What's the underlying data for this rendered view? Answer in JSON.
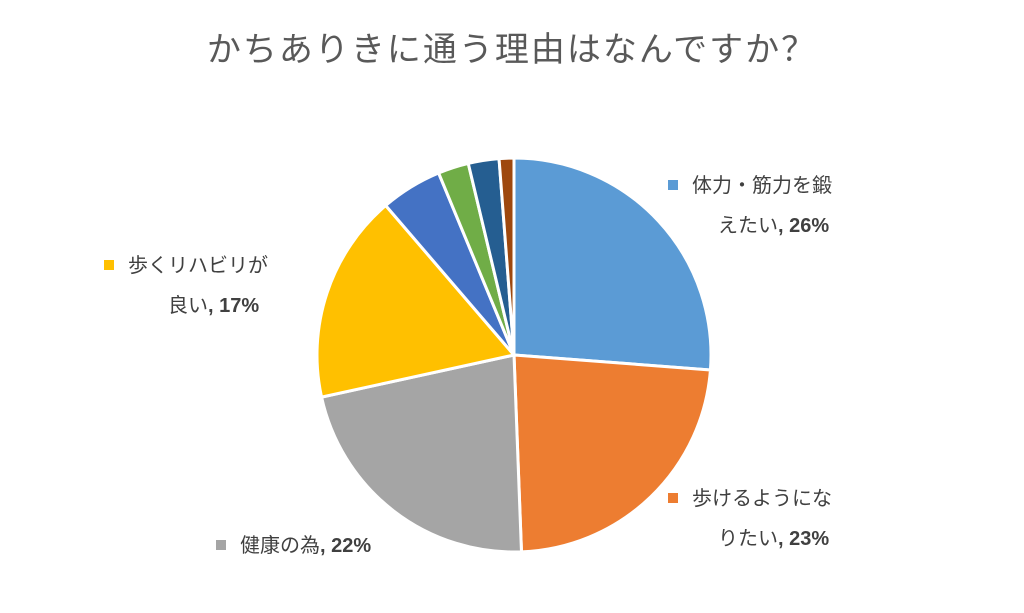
{
  "chart_data": {
    "type": "pie",
    "title": "かちありきに通う理由はなんですか？",
    "slices": [
      {
        "name": "体力・筋力を鍛えたい",
        "value": 26,
        "color": "#5B9BD5",
        "label_line1": "体力・筋力を鍛",
        "label_line2": "えたい",
        "label_pct": ", 26%"
      },
      {
        "name": "歩けるようになりたい",
        "value": 23,
        "color": "#ED7D31",
        "label_line1": "歩けるようにな",
        "label_line2": "りたい",
        "label_pct": ", 23%"
      },
      {
        "name": "健康の為",
        "value": 22,
        "color": "#A5A5A5",
        "label_line1": "健康の為",
        "label_line2": "",
        "label_pct": ", 22%"
      },
      {
        "name": "歩くリハビリが良い",
        "value": 17,
        "color": "#FFC000",
        "label_line1": "歩くリハビリが",
        "label_line2": "良い",
        "label_pct": ", 17%"
      },
      {
        "name": "",
        "value": 5,
        "color": "#4472C4"
      },
      {
        "name": "",
        "value": 2.5,
        "color": "#70AD47"
      },
      {
        "name": "",
        "value": 2.5,
        "color": "#255E91"
      },
      {
        "name": "",
        "value": 1.2,
        "color": "#9E480E"
      }
    ],
    "legend_position": "outside-labels"
  }
}
